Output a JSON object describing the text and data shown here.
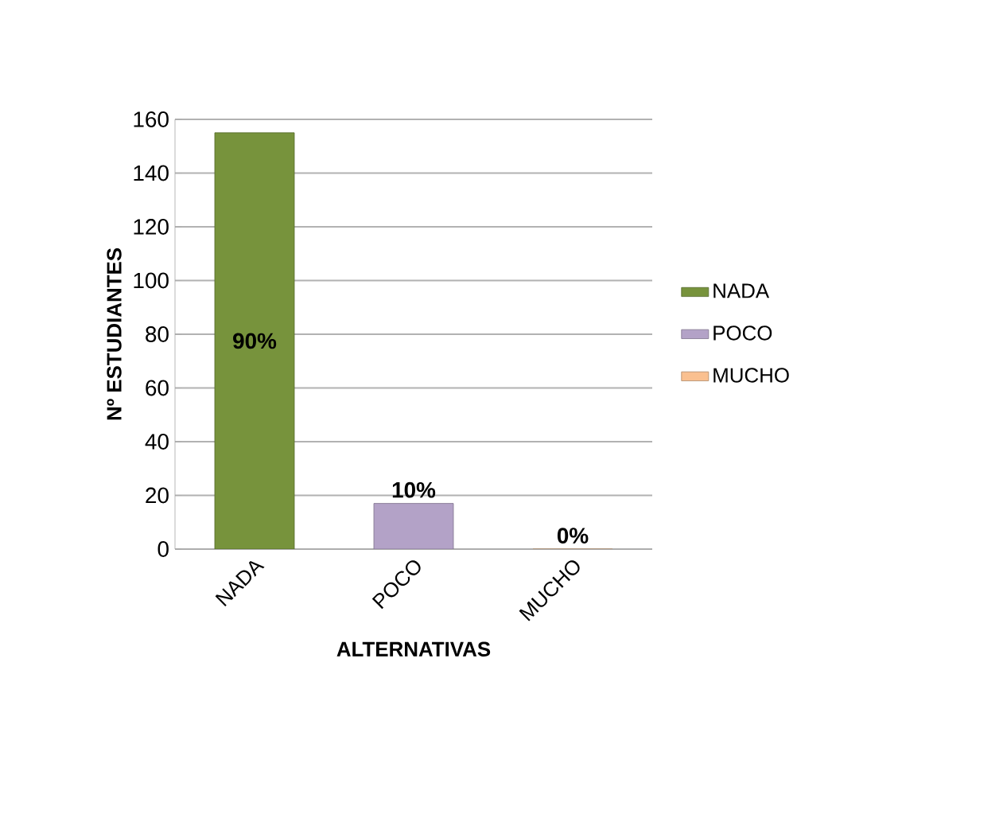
{
  "chart_data": {
    "type": "bar",
    "xlabel": "ALTERNATIVAS",
    "ylabel": "Nº ESTUDIANTES",
    "categories": [
      "NADA",
      "POCO",
      "MUCHO"
    ],
    "series": [
      {
        "name": "NADA",
        "color": "#77933c",
        "values": [
          155,
          null,
          null
        ]
      },
      {
        "name": "POCO",
        "color": "#b3a2c7",
        "values": [
          null,
          17,
          null
        ]
      },
      {
        "name": "MUCHO",
        "color": "#fac090",
        "values": [
          null,
          null,
          0
        ]
      }
    ],
    "value_labels": [
      "90%",
      "10%",
      "0%"
    ],
    "ylim": [
      0,
      160
    ],
    "yticks": [
      0,
      20,
      40,
      60,
      80,
      100,
      120,
      140,
      160
    ],
    "grid": "y",
    "legend": "right"
  }
}
